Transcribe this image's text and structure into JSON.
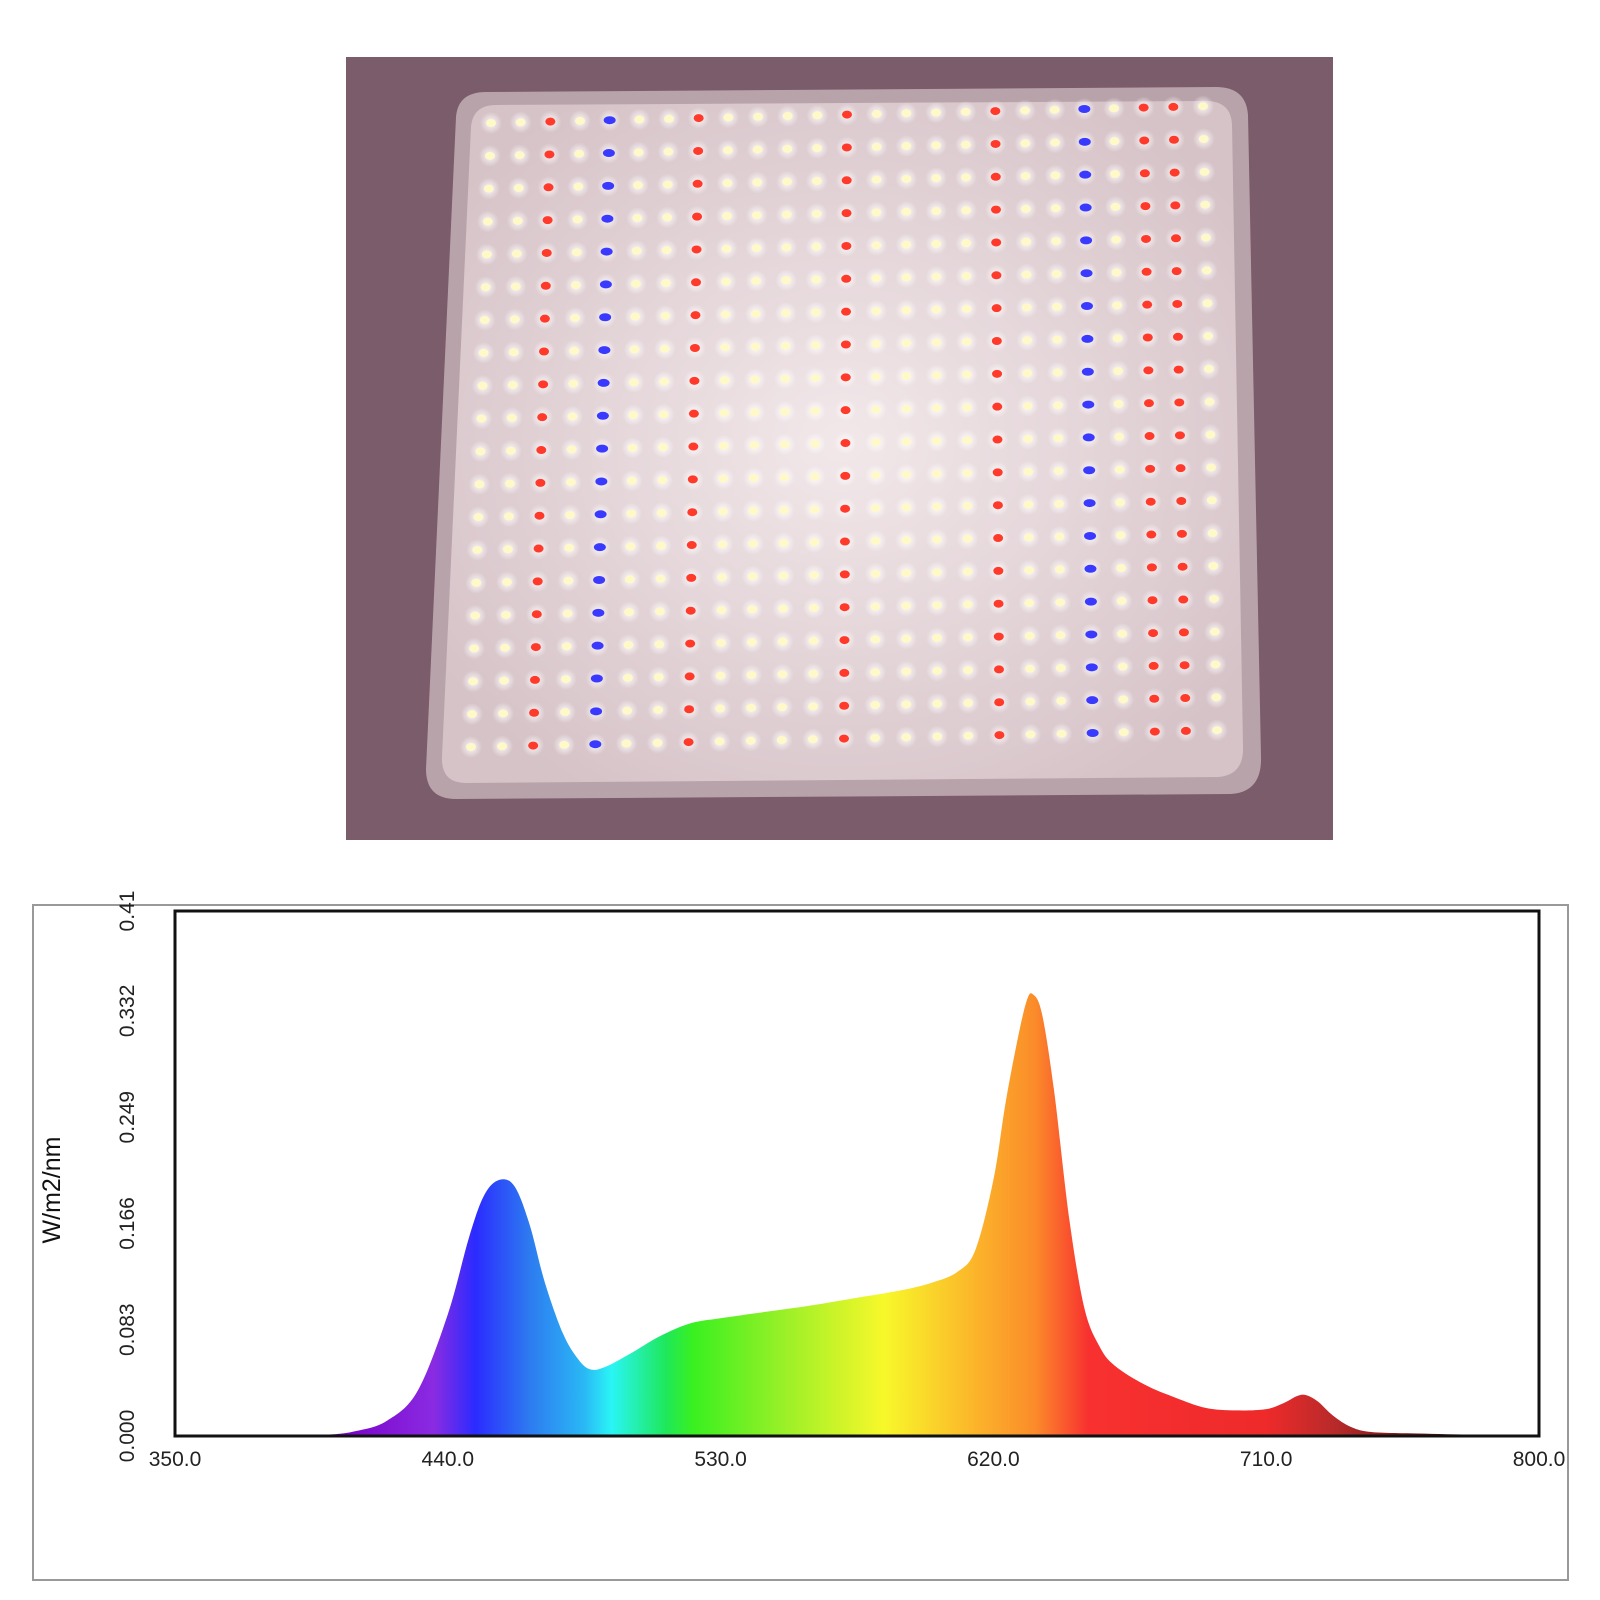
{
  "photo": {
    "subject": "LED grow light panel",
    "colors": {
      "background": "#7b5c6a",
      "panel": "#dccbd0",
      "white_led": "#fff8c8",
      "red_led": "#ff3a2a",
      "blue_led": "#3a3aff"
    }
  },
  "chart_data": {
    "type": "area",
    "title": "",
    "xlabel": "",
    "ylabel": "W/m2/nm",
    "xlim": [
      350,
      800
    ],
    "ylim": [
      0,
      0.41
    ],
    "xticks": [
      "350.0",
      "440.0",
      "530.0",
      "620.0",
      "710.0",
      "800.0"
    ],
    "yticks": [
      "0.000",
      "0.083",
      "0.166",
      "0.249",
      "0.332",
      "0.41"
    ],
    "grid": false,
    "fill": "visible-spectrum gradient",
    "x": [
      350,
      380,
      400,
      410,
      420,
      430,
      440,
      447,
      452,
      457,
      462,
      467,
      472,
      478,
      483,
      487,
      492,
      500,
      510,
      520,
      530,
      545,
      560,
      575,
      590,
      600,
      608,
      614,
      620,
      624,
      628,
      631,
      633,
      636,
      640,
      645,
      650,
      655,
      660,
      670,
      680,
      690,
      700,
      710,
      716,
      720,
      723,
      727,
      732,
      738,
      745,
      760,
      780,
      800
    ],
    "values": [
      0,
      0,
      0.001,
      0.004,
      0.012,
      0.035,
      0.095,
      0.155,
      0.188,
      0.2,
      0.195,
      0.165,
      0.12,
      0.08,
      0.06,
      0.052,
      0.054,
      0.064,
      0.078,
      0.088,
      0.092,
      0.097,
      0.102,
      0.108,
      0.114,
      0.12,
      0.128,
      0.145,
      0.2,
      0.26,
      0.31,
      0.34,
      0.345,
      0.33,
      0.27,
      0.17,
      0.1,
      0.07,
      0.055,
      0.04,
      0.03,
      0.022,
      0.02,
      0.021,
      0.026,
      0.031,
      0.032,
      0.027,
      0.016,
      0.007,
      0.003,
      0.002,
      0.001,
      0.001
    ]
  }
}
